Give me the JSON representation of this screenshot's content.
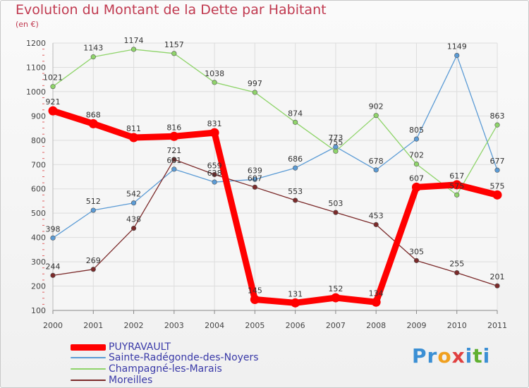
{
  "title": "Evolution du Montant de la Dette par Habitant",
  "subtitle": "(en €)",
  "logo": {
    "text": "Proxiti",
    "letters": [
      "P",
      "r",
      "o",
      "x",
      "i",
      "t",
      "i"
    ],
    "colors": [
      "#3b8fd4",
      "#3b8fd4",
      "#f0a020",
      "#e04040",
      "#3b8fd4",
      "#60b030",
      "#3b8fd4"
    ]
  },
  "chart_data": {
    "type": "line",
    "title": "Evolution du Montant de la Dette par Habitant",
    "ylabel": "(en €)",
    "xlabel": "",
    "x": [
      "2000",
      "2001",
      "2002",
      "2003",
      "2004",
      "2005",
      "2006",
      "2007",
      "2008",
      "2009",
      "2010",
      "2011"
    ],
    "ylim": [
      100,
      1200
    ],
    "yticks": [
      100,
      200,
      300,
      400,
      500,
      600,
      700,
      800,
      900,
      1000,
      1100,
      1200
    ],
    "grid": true,
    "legend_placement": "bottom-left",
    "series": [
      {
        "name": "PUYRAVAULT",
        "color": "#ff0000",
        "emphasis": true,
        "values": [
          921,
          868,
          811,
          816,
          831,
          145,
          131,
          152,
          134,
          607,
          617,
          575
        ]
      },
      {
        "name": "Sainte-Radégonde-des-Noyers",
        "color": "#5b9bd5",
        "emphasis": false,
        "values": [
          398,
          512,
          542,
          681,
          628,
          639,
          686,
          773,
          678,
          805,
          1149,
          677
        ]
      },
      {
        "name": "Champagné-les-Marais",
        "color": "#8fd46a",
        "emphasis": false,
        "values": [
          1021,
          1143,
          1174,
          1157,
          1038,
          997,
          874,
          755,
          902,
          702,
          575,
          863
        ]
      },
      {
        "name": "Moreilles",
        "color": "#7b2a2a",
        "emphasis": false,
        "values": [
          244,
          269,
          438,
          721,
          659,
          607,
          553,
          503,
          453,
          305,
          255,
          201
        ]
      }
    ]
  }
}
